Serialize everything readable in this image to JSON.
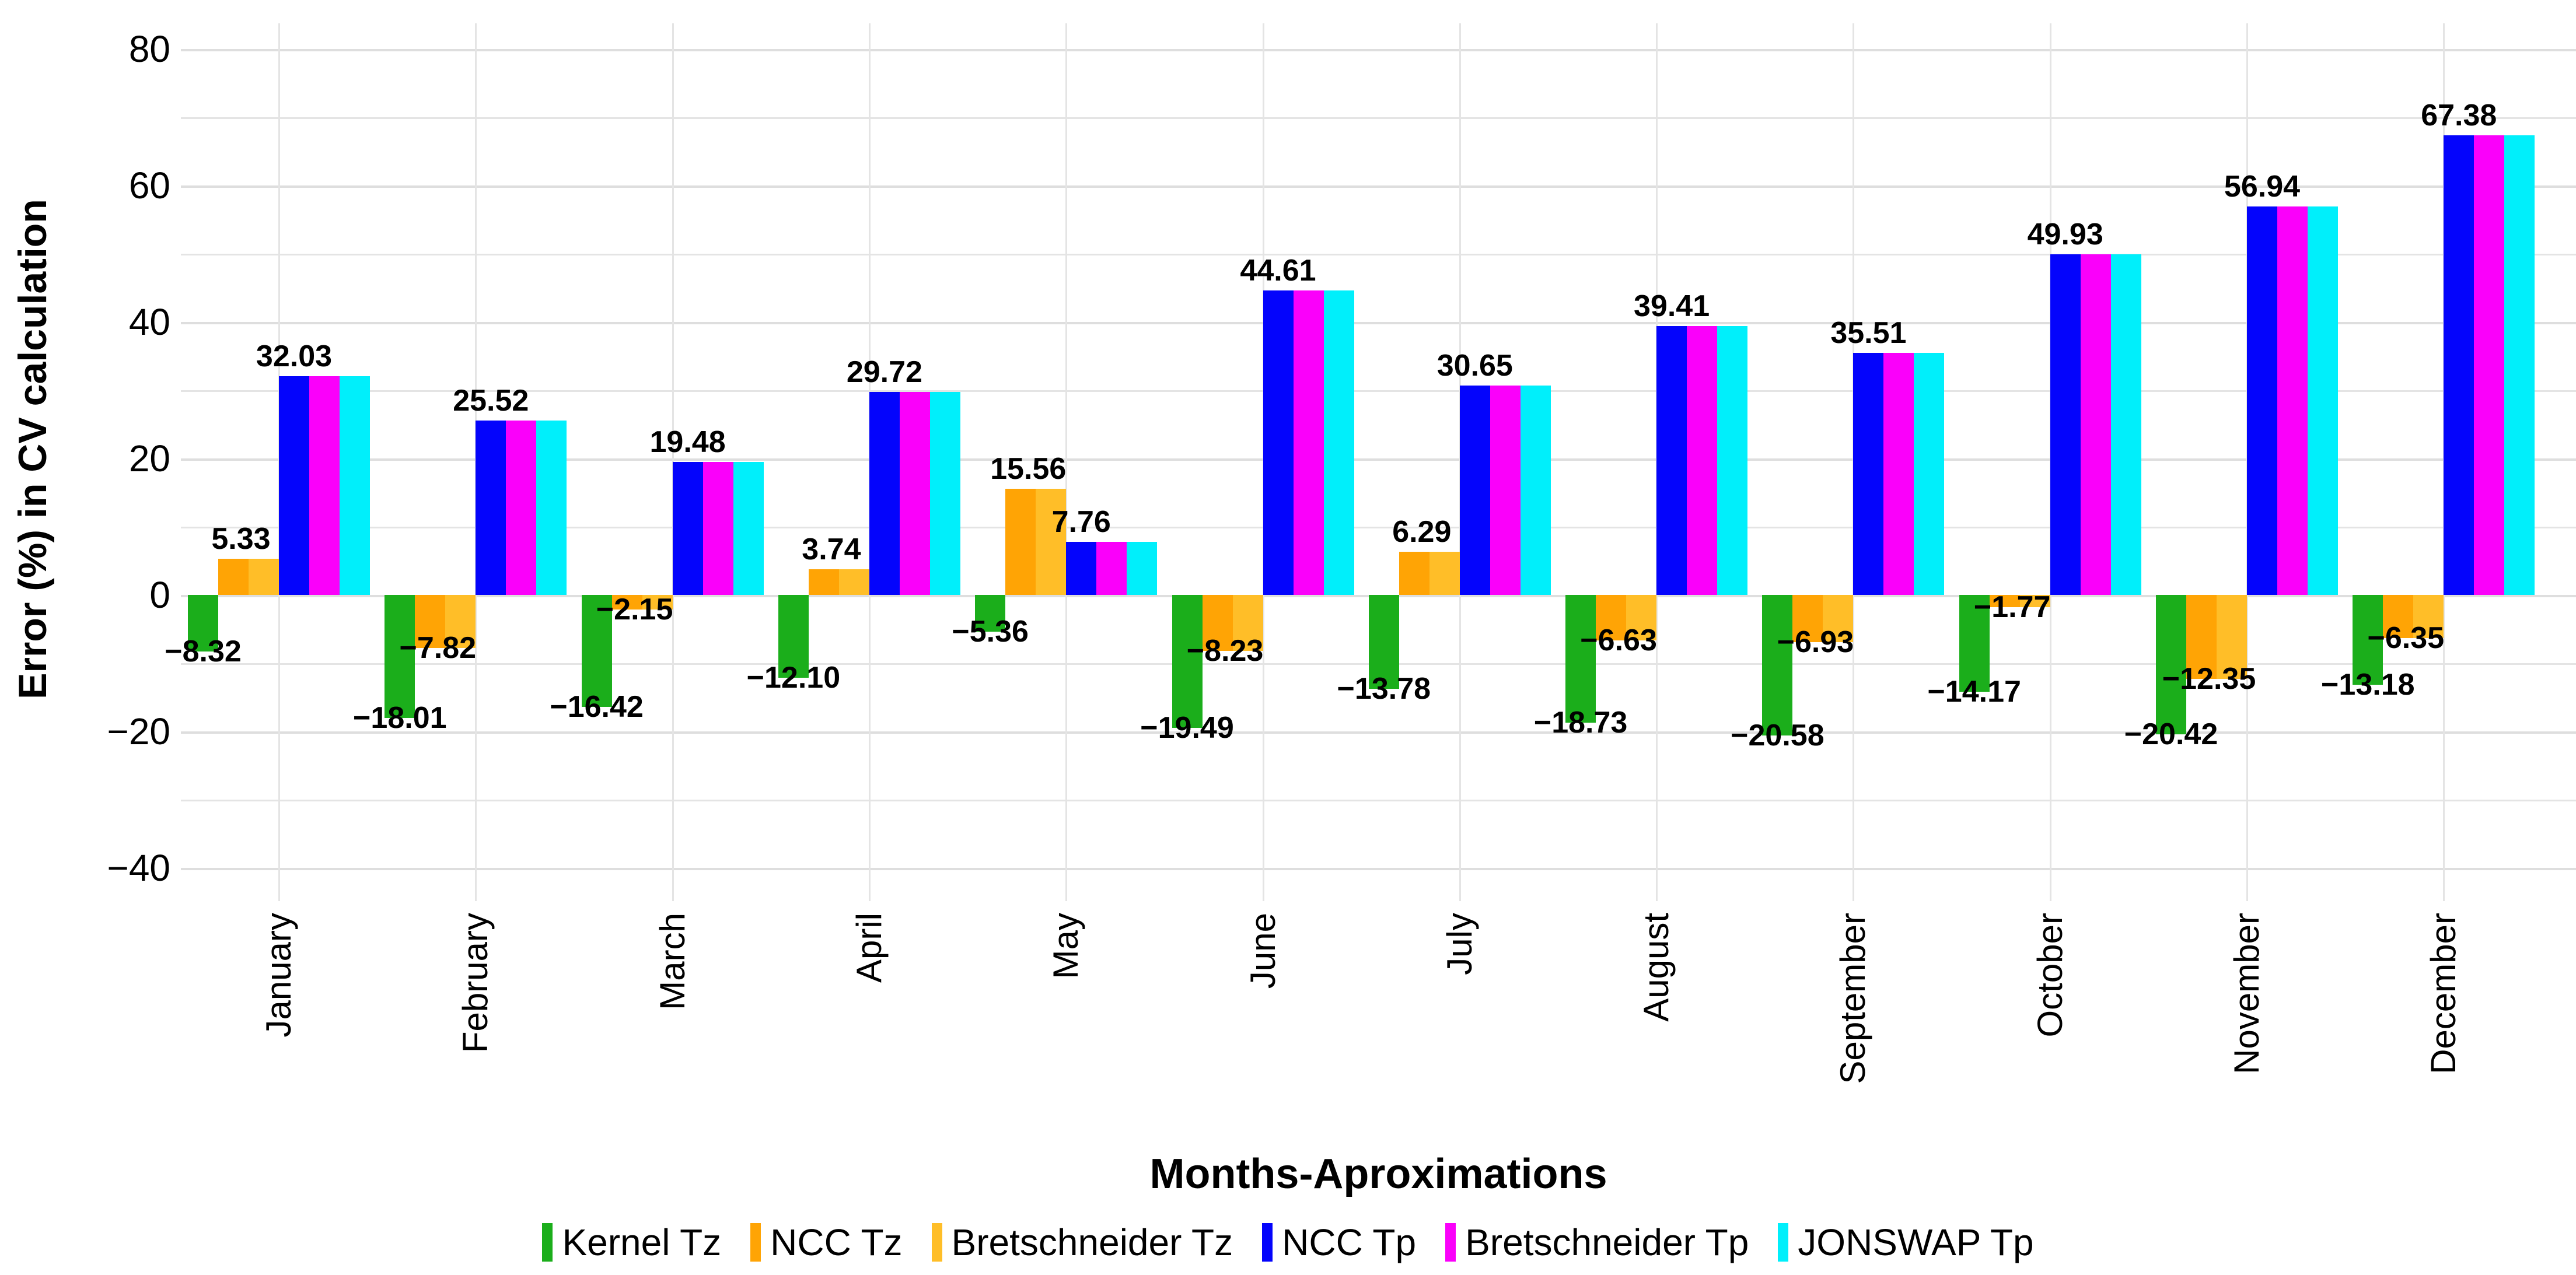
{
  "chart_data": {
    "type": "bar",
    "title": "",
    "xlabel": "Months-Aproximations",
    "ylabel": "Error (%) in CV calculation",
    "ylim": [
      -45,
      85
    ],
    "grid": true,
    "legend_position": "bottom",
    "yticks": [
      80,
      60,
      40,
      20,
      0,
      -20,
      -40
    ],
    "ytick_labels": [
      "80",
      "60",
      "40",
      "20",
      "0",
      "−20",
      "−40"
    ],
    "categories": [
      "January",
      "February",
      "March",
      "April",
      "May",
      "June",
      "July",
      "August",
      "September",
      "October",
      "November",
      "December"
    ],
    "series": [
      {
        "name": "Kernel Tz",
        "color": "#1bae1b",
        "values": [
          -8.32,
          -18.01,
          -16.42,
          -12.1,
          -5.36,
          -19.49,
          -13.78,
          -18.73,
          -20.58,
          -14.17,
          -20.42,
          -13.18
        ]
      },
      {
        "name": "NCC Tz",
        "color": "#ffa405",
        "values": [
          5.33,
          -7.82,
          -2.15,
          3.74,
          15.56,
          -8.23,
          6.29,
          -6.63,
          -6.93,
          -1.77,
          -12.35,
          -6.35
        ]
      },
      {
        "name": "Bretschneider Tz",
        "color": "#ffbe28",
        "values": [
          5.33,
          -7.82,
          -2.15,
          3.74,
          15.56,
          -8.23,
          6.29,
          -6.63,
          -6.93,
          -1.77,
          -12.35,
          -6.35
        ]
      },
      {
        "name": "NCC Tp",
        "color": "#0404fc",
        "values": [
          32.03,
          25.52,
          19.48,
          29.72,
          7.76,
          44.61,
          30.65,
          39.41,
          35.51,
          49.93,
          56.94,
          67.38
        ]
      },
      {
        "name": "Bretschneider Tp",
        "color": "#fa00fa",
        "values": [
          32.03,
          25.52,
          19.48,
          29.72,
          7.76,
          44.61,
          30.65,
          39.41,
          35.51,
          49.93,
          56.94,
          67.38
        ]
      },
      {
        "name": "JONSWAP Tp",
        "color": "#00effb",
        "values": [
          32.03,
          25.52,
          19.48,
          29.72,
          7.76,
          44.61,
          30.65,
          39.41,
          35.51,
          49.93,
          56.94,
          67.38
        ]
      }
    ],
    "bar_labels": {
      "kernel_tz": [
        "−8.32",
        "−18.01",
        "−16.42",
        "−12.10",
        "−5.36",
        "−19.49",
        "−13.78",
        "−18.73",
        "−20.58",
        "−14.17",
        "−20.42",
        "−13.18"
      ],
      "tz": [
        "5.33",
        "−7.82",
        "−2.15",
        "3.74",
        "15.56",
        "−8.23",
        "6.29",
        "−6.63",
        "−6.93",
        "−1.77",
        "−12.35",
        "−6.35"
      ],
      "tp": [
        "32.03",
        "25.52",
        "19.48",
        "29.72",
        "7.76",
        "44.61",
        "30.65",
        "39.41",
        "35.51",
        "49.93",
        "56.94",
        "67.38"
      ]
    }
  }
}
